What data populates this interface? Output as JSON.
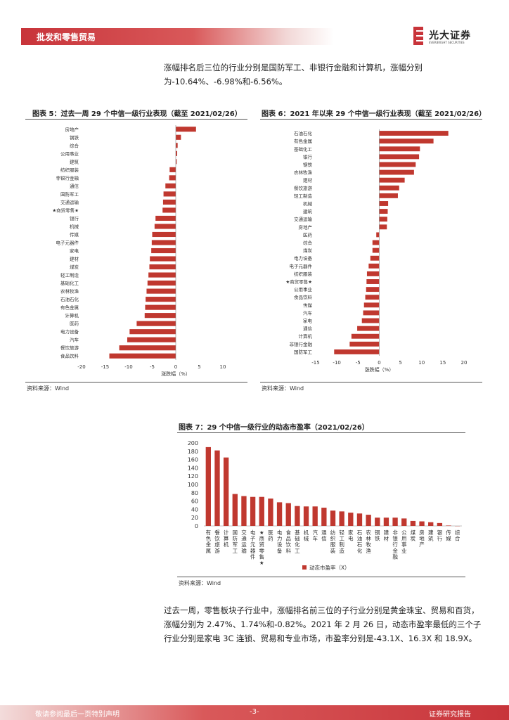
{
  "header": {
    "title": "批发和零售贸易"
  },
  "logo": {
    "name_cn": "光大证券",
    "name_en": "EVERBRIGHT SECURITIES"
  },
  "para_top": "涨幅排名后三位的行业分别是国防军工、非银行金融和计算机，涨幅分别为-10.64%、-6.98%和-6.56%。",
  "fig5": {
    "title": "图表 5：过去一周 29 个中信一级行业表现（截至 2021/02/26）",
    "source": "资料来源：Wind"
  },
  "fig6": {
    "title": "图表 6：2021 年以来 29 个中信一级行业表现（截至 2021/02/26）",
    "source": "资料来源：Wind"
  },
  "fig7": {
    "title": "图表 7：29 个中信一级行业的动态市盈率（2021/02/26）",
    "source": "资料来源：Wind"
  },
  "para_bottom": "过去一周，零售板块子行业中，涨幅排名前三位的子行业分别是黄金珠宝、贸易和百货，涨幅分别为 2.47%、1.74%和-0.82%。2021 年 2 月 26 日，动态市盈率最低的三个子行业分别是家电 3C 连锁、贸易和专业市场，市盈率分别是-43.1X、16.3X 和 18.9X。",
  "footer": {
    "left": "敬请参阅最后一页特别声明",
    "page": "-3-",
    "right": "证券研究报告"
  },
  "colors": {
    "bar": "#c0382f",
    "brand": "#c8343a"
  },
  "chart_data": [
    {
      "type": "bar",
      "orientation": "horizontal",
      "categories": [
        "房地产",
        "钢铁",
        "综合",
        "公用事业",
        "建筑",
        "纺织服装",
        "非银行金融",
        "通信",
        "国防军工",
        "交通运输",
        "★商贸零售★",
        "银行",
        "机械",
        "传媒",
        "电子元器件",
        "家电",
        "建材",
        "煤炭",
        "轻工制造",
        "基础化工",
        "农林牧渔",
        "石油石化",
        "有色金属",
        "计算机",
        "医药",
        "电力设备",
        "汽车",
        "餐饮旅游",
        "食品饮料"
      ],
      "values": [
        4.3,
        1.1,
        0.4,
        0.3,
        0.2,
        -1.3,
        -1.4,
        -2.2,
        -2.6,
        -2.7,
        -2.8,
        -4.3,
        -4.5,
        -5.0,
        -5.1,
        -5.2,
        -5.5,
        -5.6,
        -5.8,
        -6.0,
        -6.2,
        -6.4,
        -6.5,
        -6.6,
        -8.3,
        -9.8,
        -10.3,
        -12.0,
        -14.1
      ],
      "xlabel": "涨跌幅（%）",
      "xlim": [
        -20,
        10
      ],
      "xticks": [
        -20,
        -15,
        -10,
        -5,
        0,
        5,
        10
      ]
    },
    {
      "type": "bar",
      "orientation": "horizontal",
      "categories": [
        "石油石化",
        "有色金属",
        "基础化工",
        "银行",
        "钢铁",
        "农林牧渔",
        "建材",
        "餐饮旅游",
        "轻工制造",
        "机械",
        "建筑",
        "交通运输",
        "房地产",
        "医药",
        "综合",
        "煤炭",
        "电力设备",
        "电子元器件",
        "纺织服装",
        "★商贸零售★",
        "公用事业",
        "食品饮料",
        "传媒",
        "汽车",
        "家电",
        "通信",
        "计算机",
        "非银行金融",
        "国防军工"
      ],
      "values": [
        16.3,
        12.8,
        9.6,
        9.4,
        8.6,
        8.2,
        6.0,
        4.7,
        4.4,
        2.1,
        2.0,
        1.9,
        1.8,
        -0.7,
        -1.6,
        -1.6,
        -2.1,
        -2.5,
        -2.9,
        -3.0,
        -3.1,
        -3.3,
        -3.6,
        -3.8,
        -4.1,
        -5.2,
        -6.56,
        -6.98,
        -10.64
      ],
      "xlabel": "涨跌幅（%）",
      "xlim": [
        -15,
        20
      ],
      "xticks": [
        -15,
        -10,
        -5,
        0,
        5,
        10,
        15,
        20
      ]
    },
    {
      "type": "bar",
      "orientation": "vertical",
      "categories": [
        "有色金属",
        "餐饮旅游",
        "计算机",
        "国防军工",
        "交通运输",
        "电子元器件",
        "★商贸零售★",
        "医药",
        "电力设备",
        "食品饮料",
        "基础化工",
        "机械",
        "汽车",
        "通信",
        "纺织服装",
        "轻工制造",
        "家电",
        "石油石化",
        "农林牧渔",
        "钢铁",
        "建材",
        "非银行金融",
        "公用事业",
        "煤炭",
        "房地产",
        "建筑",
        "银行",
        "传媒",
        "综合"
      ],
      "values": [
        190,
        182,
        165,
        77,
        72,
        70,
        70,
        66,
        57,
        55,
        48,
        47,
        47,
        44,
        37,
        35,
        32,
        30,
        27,
        20,
        20,
        20,
        18,
        12,
        11,
        9,
        7,
        1,
        0
      ],
      "legend": "动态市盈率（X）",
      "ylim": [
        0,
        200
      ],
      "yticks": [
        0,
        20,
        40,
        60,
        80,
        100,
        120,
        140,
        160,
        180,
        200
      ]
    }
  ]
}
